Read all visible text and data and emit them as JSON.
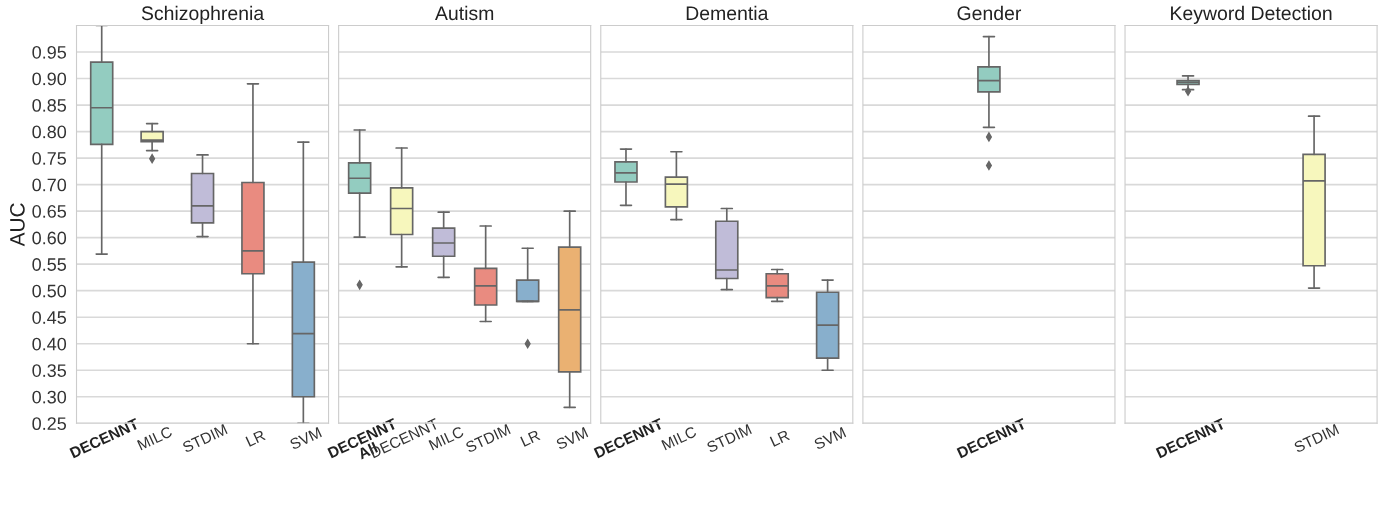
{
  "chart_data": [
    {
      "type": "box",
      "title": "Schizophrenia",
      "ylabel": "AUC",
      "categories": [
        "DECENNT",
        "MILC",
        "STDIM",
        "LR",
        "SVM"
      ],
      "colors": [
        "#93ccc0",
        "#f7f7bd",
        "#c0bcd8",
        "#e98b80",
        "#88afcc"
      ],
      "boxes": [
        {
          "low": 0.569,
          "q1": 0.776,
          "median": 0.845,
          "q3": 0.931,
          "high": 1.0
        },
        {
          "low": 0.764,
          "q1": 0.781,
          "median": 0.784,
          "q3": 0.8,
          "high": 0.815,
          "outliers": [
            0.749
          ]
        },
        {
          "low": 0.602,
          "q1": 0.628,
          "median": 0.66,
          "q3": 0.721,
          "high": 0.756
        },
        {
          "low": 0.4,
          "q1": 0.532,
          "median": 0.575,
          "q3": 0.704,
          "high": 0.89
        },
        {
          "low": 0.25,
          "q1": 0.3,
          "median": 0.419,
          "q3": 0.554,
          "high": 0.78
        }
      ],
      "ylim": [
        0.25,
        1.0
      ],
      "yticks": [
        0.25,
        {
          "value": 0.3,
          "label": "0.30"
        },
        0.35,
        {
          "value": 0.4,
          "label": "0.40"
        },
        0.45,
        {
          "value": 0.5,
          "label": "0.50"
        },
        0.55,
        {
          "value": 0.6,
          "label": "0.60"
        },
        0.65,
        {
          "value": 0.7,
          "label": "0.70"
        },
        0.75,
        {
          "value": 0.8,
          "label": "0.80"
        },
        0.85,
        {
          "value": 0.9,
          "label": "0.90"
        },
        0.95
      ],
      "grid": "y"
    },
    {
      "type": "box",
      "title": "Autism",
      "categories": [
        "DECENNT\nAll",
        "DECENNT",
        "MILC",
        "STDIM",
        "LR",
        "SVM"
      ],
      "colors": [
        "#93ccc0",
        "#f7f7bd",
        "#c0bcd8",
        "#e98b80",
        "#88afcc",
        "#eab172"
      ],
      "boxes": [
        {
          "low": 0.601,
          "q1": 0.684,
          "median": 0.712,
          "q3": 0.741,
          "high": 0.803,
          "outliers": [
            0.511
          ]
        },
        {
          "low": 0.545,
          "q1": 0.606,
          "median": 0.655,
          "q3": 0.694,
          "high": 0.769
        },
        {
          "low": 0.525,
          "q1": 0.565,
          "median": 0.59,
          "q3": 0.618,
          "high": 0.648
        },
        {
          "low": 0.442,
          "q1": 0.473,
          "median": 0.509,
          "q3": 0.542,
          "high": 0.622
        },
        {
          "low": 0.48,
          "q1": 0.48,
          "median": 0.48,
          "q3": 0.52,
          "high": 0.58,
          "outliers": [
            0.4
          ]
        },
        {
          "low": 0.28,
          "q1": 0.347,
          "median": 0.464,
          "q3": 0.582,
          "high": 0.65
        }
      ],
      "ylim": [
        0.25,
        1.0
      ],
      "yticks": [
        0.25,
        0.3,
        0.35,
        0.4,
        0.45,
        0.5,
        0.55,
        0.6,
        0.65,
        0.7,
        0.75,
        0.8,
        0.85,
        0.9,
        0.95
      ],
      "grid": "y",
      "tick_labels": "x"
    },
    {
      "type": "box",
      "title": "Dementia",
      "categories": [
        "DECENNT",
        "MILC",
        "STDIM",
        "LR",
        "SVM"
      ],
      "colors": [
        "#93ccc0",
        "#f7f7bd",
        "#c0bcd8",
        "#e98b80",
        "#88afcc"
      ],
      "boxes": [
        {
          "low": 0.661,
          "q1": 0.705,
          "median": 0.722,
          "q3": 0.743,
          "high": 0.767
        },
        {
          "low": 0.634,
          "q1": 0.658,
          "median": 0.701,
          "q3": 0.714,
          "high": 0.762
        },
        {
          "low": 0.502,
          "q1": 0.523,
          "median": 0.539,
          "q3": 0.631,
          "high": 0.655
        },
        {
          "low": 0.48,
          "q1": 0.487,
          "median": 0.509,
          "q3": 0.532,
          "high": 0.54
        },
        {
          "low": 0.35,
          "q1": 0.373,
          "median": 0.435,
          "q3": 0.497,
          "high": 0.52
        }
      ],
      "ylim": [
        0.25,
        1.0
      ],
      "yticks": [
        0.25,
        0.3,
        0.35,
        0.4,
        0.45,
        0.5,
        0.55,
        0.6,
        0.65,
        0.7,
        0.75,
        0.8,
        0.85,
        0.9,
        0.95
      ],
      "grid": "y",
      "tick_labels": "x"
    },
    {
      "type": "box",
      "title": "Gender",
      "categories": [
        "DECENNT"
      ],
      "colors": [
        "#93ccc0"
      ],
      "boxes": [
        {
          "low": 0.808,
          "q1": 0.875,
          "median": 0.896,
          "q3": 0.922,
          "high": 0.979,
          "outliers": [
            0.79,
            0.736
          ]
        }
      ],
      "ylim": [
        0.25,
        1.0
      ],
      "yticks": [
        0.25,
        0.3,
        0.35,
        0.4,
        0.45,
        0.5,
        0.55,
        0.6,
        0.65,
        0.7,
        0.75,
        0.8,
        0.85,
        0.9,
        0.95
      ],
      "grid": "y",
      "tick_labels": "x"
    },
    {
      "type": "box",
      "title": "Keyword Detection",
      "categories": [
        "DECENNT",
        "STDIM"
      ],
      "colors": [
        "#93ccc0",
        "#f7f7bd"
      ],
      "boxes": [
        {
          "low": 0.879,
          "q1": 0.889,
          "median": 0.893,
          "q3": 0.896,
          "high": 0.905,
          "outliers": [
            0.876
          ]
        },
        {
          "low": 0.505,
          "q1": 0.547,
          "median": 0.707,
          "q3": 0.757,
          "high": 0.829
        }
      ],
      "ylim": [
        0.25,
        1.0
      ],
      "yticks": [
        0.25,
        0.3,
        0.35,
        0.4,
        0.45,
        0.5,
        0.55,
        0.6,
        0.65,
        0.7,
        0.75,
        0.8,
        0.85,
        0.9,
        0.95
      ],
      "grid": "y",
      "tick_labels": "x"
    }
  ]
}
